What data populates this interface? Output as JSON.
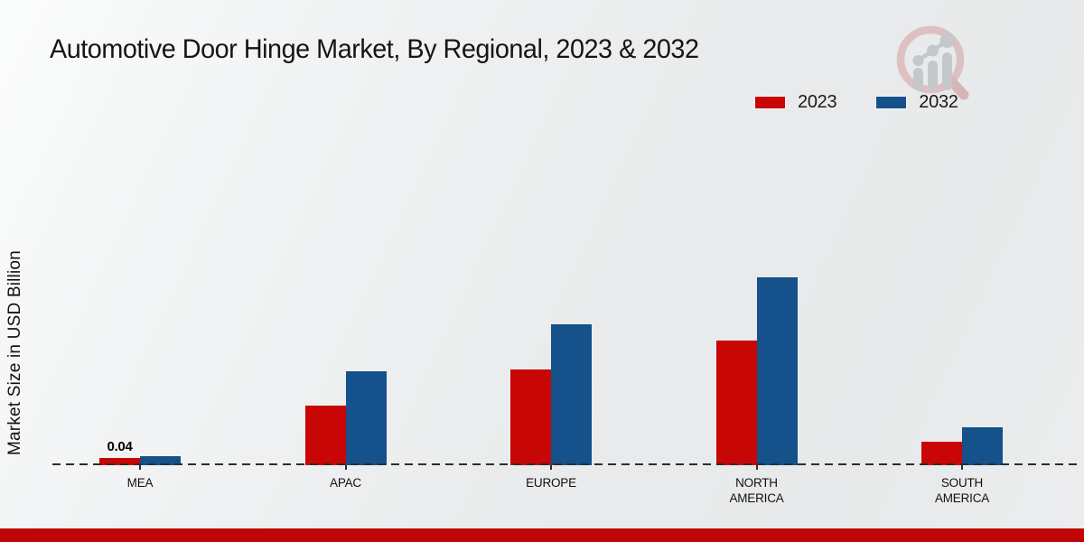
{
  "page": {
    "title": "Automotive Door Hinge Market, By Regional, 2023 & 2032"
  },
  "legend": {
    "items": [
      {
        "label": "2023",
        "color": "#c80606"
      },
      {
        "label": "2032",
        "color": "#15518b"
      }
    ]
  },
  "chart_data": {
    "type": "bar",
    "title": "Automotive Door Hinge Market, By Regional, 2023 & 2032",
    "categories": [
      "MEA",
      "APAC",
      "EUROPE",
      "NORTH AMERICA",
      "SOUTH AMERICA"
    ],
    "x_tick_labels": [
      "MEA",
      "APAC",
      "EUROPE",
      "NORTH\nAMERICA",
      "SOUTH\nAMERICA"
    ],
    "series": [
      {
        "name": "2023",
        "color": "#c80606",
        "values": [
          0.04,
          0.33,
          0.53,
          0.69,
          0.13
        ]
      },
      {
        "name": "2032",
        "color": "#15518b",
        "values": [
          0.05,
          0.52,
          0.78,
          1.04,
          0.21
        ]
      }
    ],
    "xlabel": "",
    "ylabel": "Market Size in USD Billion",
    "ylim": [
      0,
      1.1
    ],
    "grid": false,
    "legend_position": "top-right",
    "baseline_style": "dashed",
    "annotations": [
      {
        "series": "2023",
        "category": "MEA",
        "text": "0.04"
      }
    ]
  },
  "watermark": {
    "name": "market-research-magnifier-logo"
  },
  "footer": {
    "color": "#bf0505"
  }
}
